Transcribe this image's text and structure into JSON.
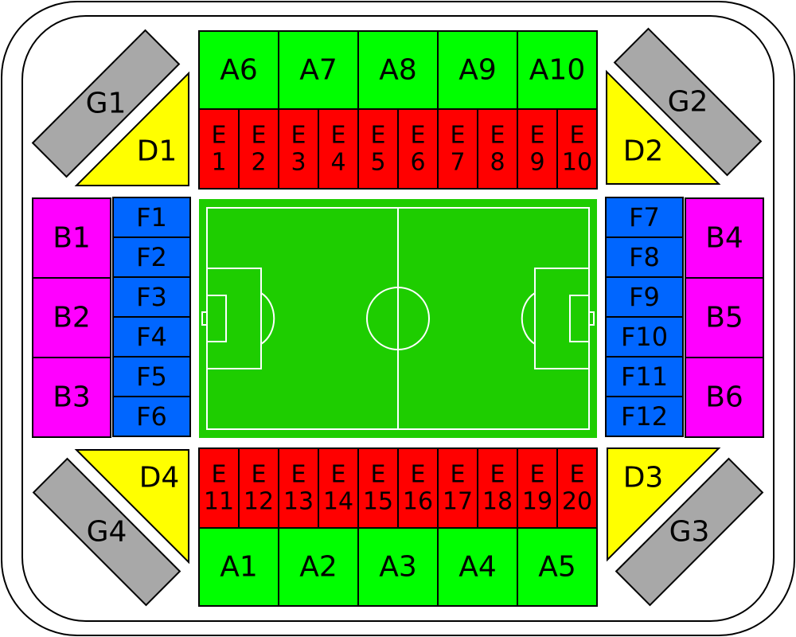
{
  "colors": {
    "A": "#00ff00",
    "E": "#ff0000",
    "B": "#ff00ff",
    "F": "#0066ff",
    "D": "#ffff00",
    "G": "#a8a8a8",
    "pitch": "#1ecd00",
    "pitch_lines": "#ffffff",
    "stroke": "#000000"
  },
  "sections": {
    "A_top": [
      "A6",
      "A7",
      "A8",
      "A9",
      "A10"
    ],
    "A_bottom": [
      "A1",
      "A2",
      "A3",
      "A4",
      "A5"
    ],
    "E_top": [
      [
        "E",
        "1"
      ],
      [
        "E",
        "2"
      ],
      [
        "E",
        "3"
      ],
      [
        "E",
        "4"
      ],
      [
        "E",
        "5"
      ],
      [
        "E",
        "6"
      ],
      [
        "E",
        "7"
      ],
      [
        "E",
        "8"
      ],
      [
        "E",
        "9"
      ],
      [
        "E",
        "10"
      ]
    ],
    "E_bottom": [
      [
        "E",
        "11"
      ],
      [
        "E",
        "12"
      ],
      [
        "E",
        "13"
      ],
      [
        "E",
        "14"
      ],
      [
        "E",
        "15"
      ],
      [
        "E",
        "16"
      ],
      [
        "E",
        "17"
      ],
      [
        "E",
        "18"
      ],
      [
        "E",
        "19"
      ],
      [
        "E",
        "20"
      ]
    ],
    "B_left": [
      "B1",
      "B2",
      "B3"
    ],
    "B_right": [
      "B4",
      "B5",
      "B6"
    ],
    "F_left": [
      "F1",
      "F2",
      "F3",
      "F4",
      "F5",
      "F6"
    ],
    "F_right": [
      "F7",
      "F8",
      "F9",
      "F10",
      "F11",
      "F12"
    ],
    "D": [
      "D1",
      "D2",
      "D3",
      "D4"
    ],
    "G": [
      "G1",
      "G2",
      "G3",
      "G4"
    ]
  }
}
